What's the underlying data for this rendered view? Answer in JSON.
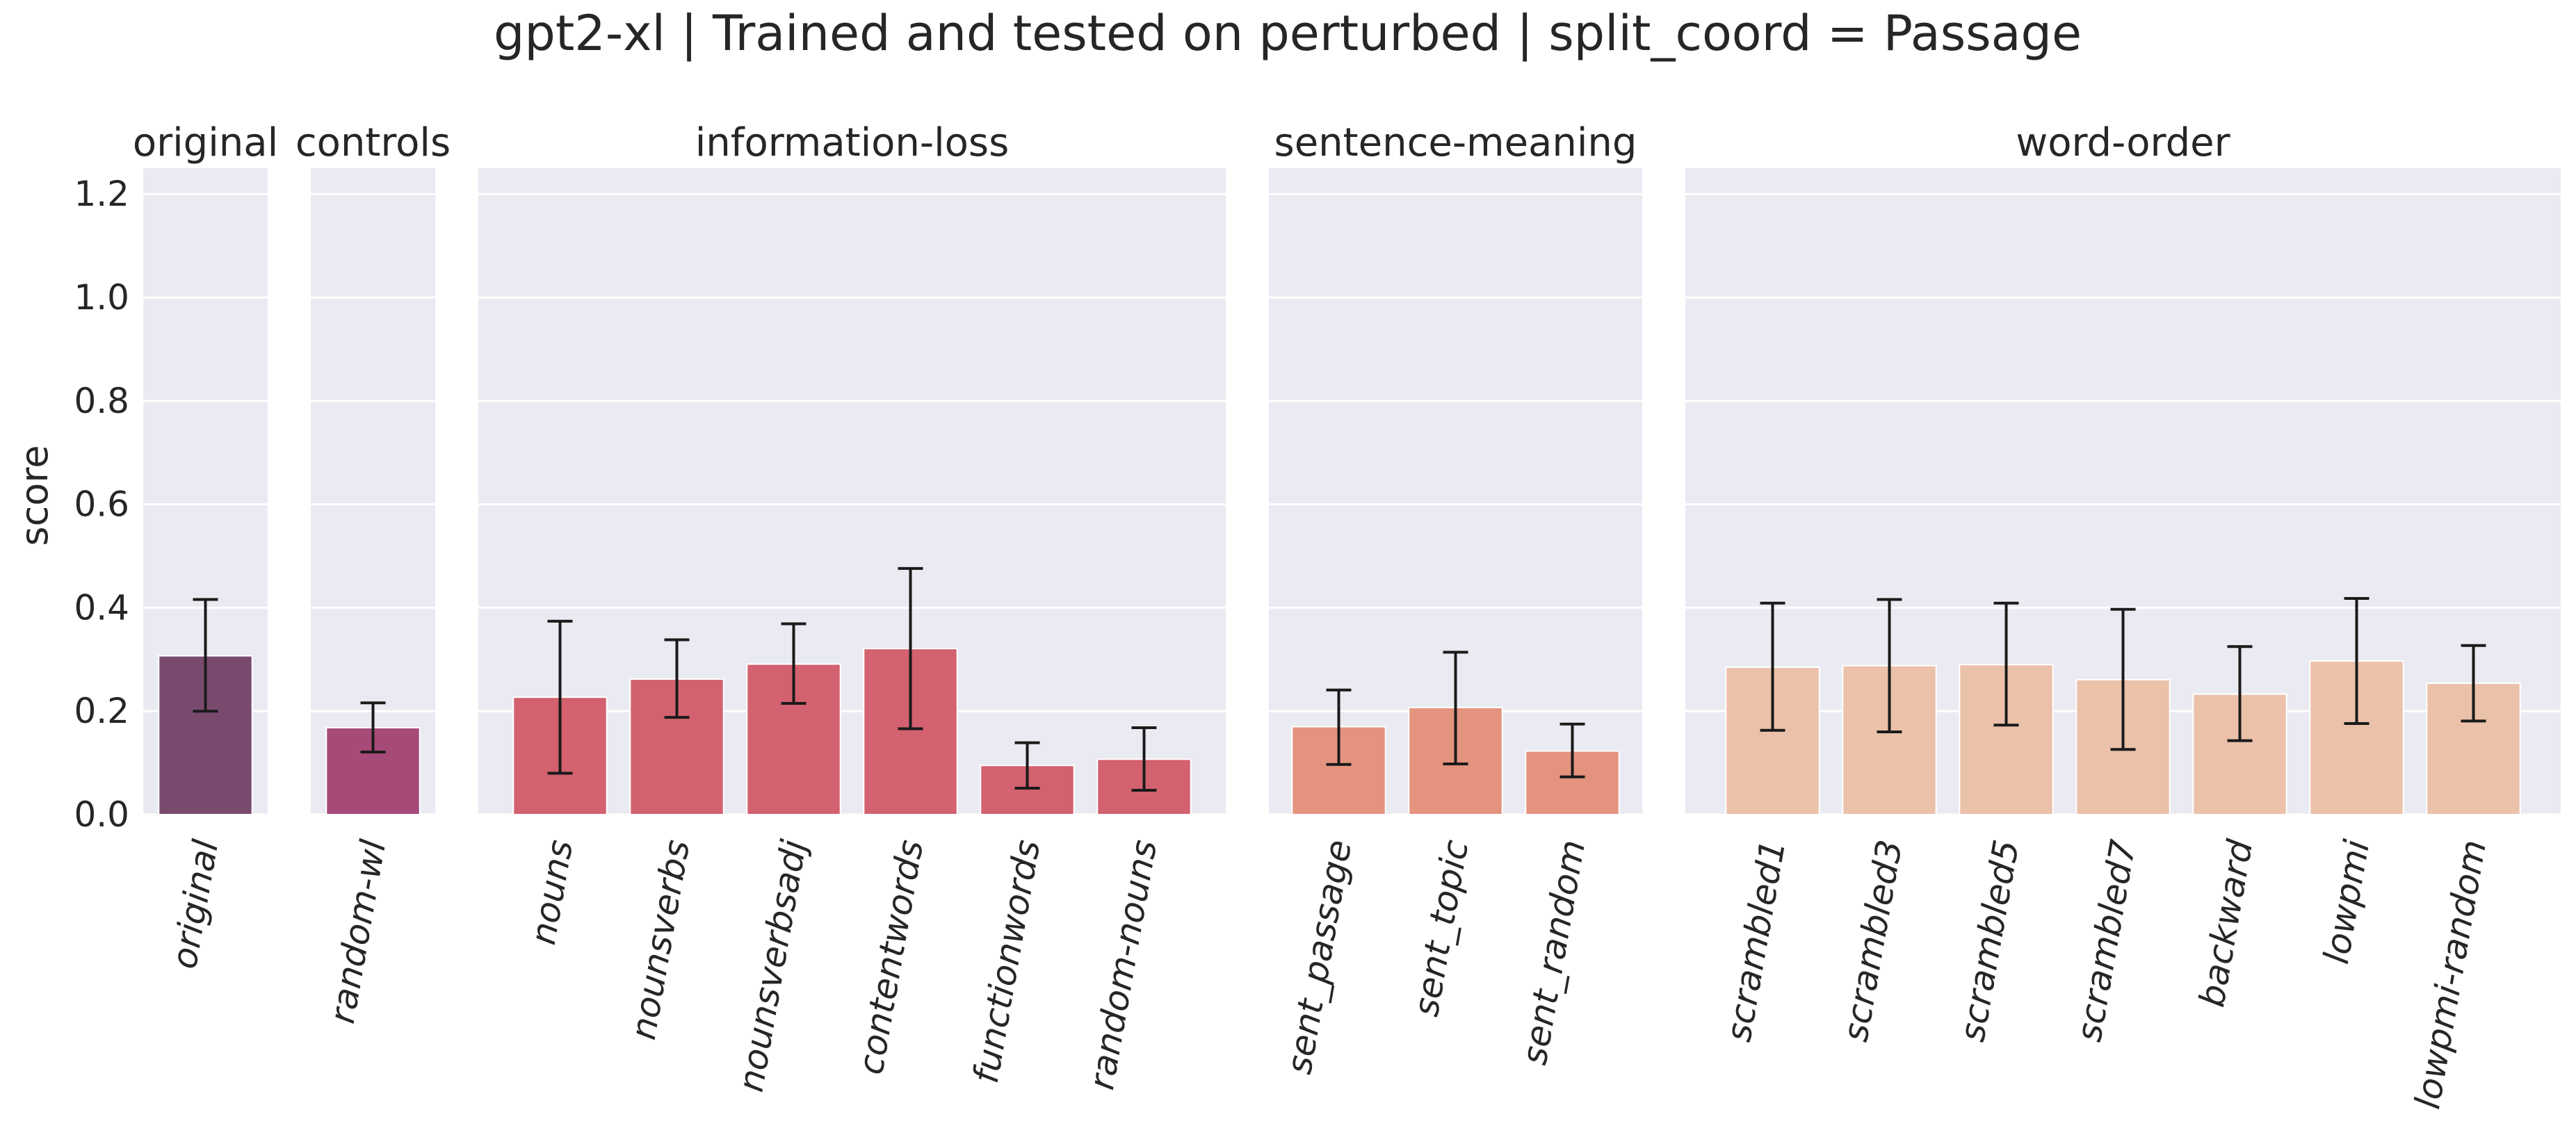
{
  "chart_data": {
    "type": "bar",
    "title": "gpt2-xl | Trained and tested on perturbed | split_coord = Passage",
    "ylabel": "score",
    "ylim": [
      0,
      1.25
    ],
    "yticks": [
      "0.0",
      "0.2",
      "0.4",
      "0.6",
      "0.8",
      "1.0",
      "1.2"
    ],
    "grid": true,
    "error_bars": true,
    "panels": [
      {
        "title": "original",
        "color": "#7a4a6e",
        "categories": [
          "original"
        ],
        "values": [
          0.307
        ],
        "err_low": [
          0.2
        ],
        "err_high": [
          0.416
        ]
      },
      {
        "title": "controls",
        "color": "#a64a78",
        "categories": [
          "random-wl"
        ],
        "values": [
          0.168
        ],
        "err_low": [
          0.121
        ],
        "err_high": [
          0.216
        ]
      },
      {
        "title": "information-loss",
        "color": "#d3616f",
        "categories": [
          "nouns",
          "nounsverbs",
          "nounsverbsadj",
          "contentwords",
          "functionwords",
          "random-nouns"
        ],
        "values": [
          0.227,
          0.262,
          0.291,
          0.321,
          0.095,
          0.107
        ],
        "err_low": [
          0.08,
          0.188,
          0.215,
          0.166,
          0.051,
          0.047
        ],
        "err_high": [
          0.374,
          0.338,
          0.369,
          0.476,
          0.139,
          0.168
        ]
      },
      {
        "title": "sentence-meaning",
        "color": "#e4937e",
        "categories": [
          "sent_passage",
          "sent_topic",
          "sent_random"
        ],
        "values": [
          0.17,
          0.207,
          0.123
        ],
        "err_low": [
          0.097,
          0.098,
          0.073
        ],
        "err_high": [
          0.241,
          0.314,
          0.175
        ]
      },
      {
        "title": "word-order",
        "color": "#ebc1aa",
        "categories": [
          "scrambled1",
          "scrambled3",
          "scrambled5",
          "scrambled7",
          "backward",
          "lowpmi",
          "lowpmi-random"
        ],
        "values": [
          0.285,
          0.288,
          0.29,
          0.261,
          0.233,
          0.297,
          0.254
        ],
        "err_low": [
          0.163,
          0.16,
          0.173,
          0.126,
          0.143,
          0.176,
          0.181
        ],
        "err_high": [
          0.409,
          0.416,
          0.409,
          0.397,
          0.325,
          0.418,
          0.327
        ]
      }
    ]
  }
}
